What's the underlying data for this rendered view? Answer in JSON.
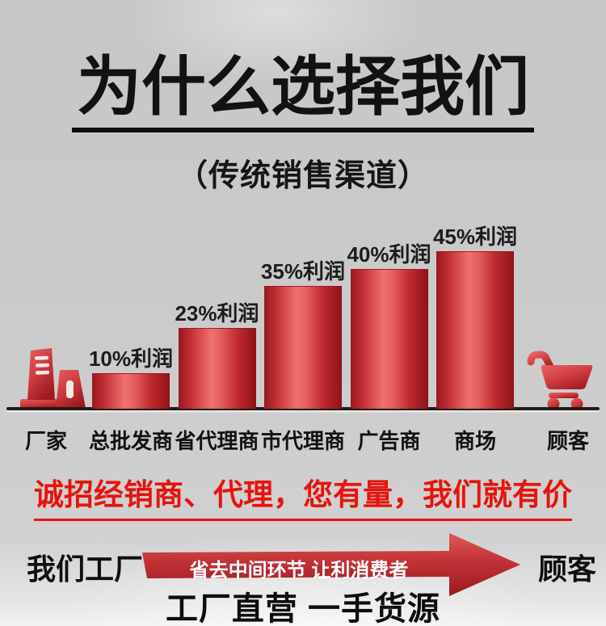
{
  "header": {
    "title": "为什么选择我们",
    "subtitle": "（传统销售渠道）"
  },
  "chart_data": {
    "type": "bar",
    "categories": [
      "总批发商",
      "省代理商",
      "市代理商",
      "广告商",
      "商场"
    ],
    "values": [
      10,
      23,
      35,
      40,
      45
    ],
    "value_labels": [
      "10%利润",
      "23%利润",
      "35%利润",
      "40%利润",
      "45%利润"
    ],
    "endpoints": {
      "left": {
        "label": "厂家",
        "icon": "factory-icon"
      },
      "right": {
        "label": "顾客",
        "icon": "shopping-cart-icon"
      }
    },
    "ylabel": "",
    "xlabel": "",
    "ylim": [
      0,
      50
    ],
    "grid": false,
    "legend": false,
    "bar_color": "#d6383f",
    "bar_gradient": [
      "#96191e",
      "#ee7170",
      "#8c1418"
    ]
  },
  "slogan": {
    "text": "诚招经销商、代理，您有量，我们就有价",
    "color": "#e8130d"
  },
  "flow": {
    "left_label": "我们工厂",
    "arrow_text": "省去中间环节 让利消费者",
    "right_label": "顾客",
    "bottom_text": "工厂直营 一手货源",
    "arrow_color": "#b02226"
  }
}
